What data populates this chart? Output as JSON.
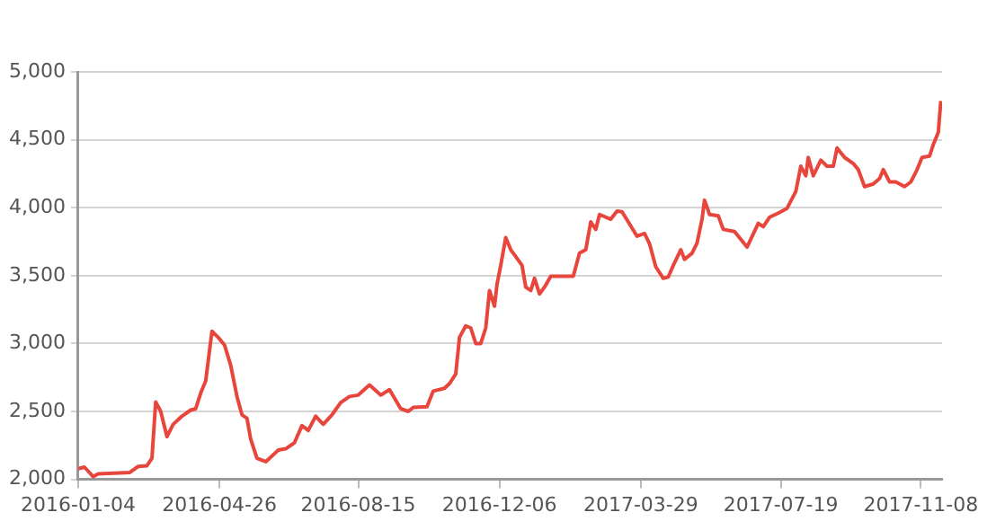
{
  "chart_data": {
    "type": "line",
    "color": "#e8453c",
    "marker": "none",
    "grid": "y",
    "x": [
      "2016-01-04",
      "2016-01-09",
      "2016-01-16",
      "2016-01-20",
      "2016-02-14",
      "2016-02-21",
      "2016-02-28",
      "2016-03-03",
      "2016-03-06",
      "2016-03-10",
      "2016-03-15",
      "2016-03-20",
      "2016-03-27",
      "2016-04-03",
      "2016-04-07",
      "2016-04-11",
      "2016-04-15",
      "2016-04-20",
      "2016-04-25",
      "2016-04-30",
      "2016-05-05",
      "2016-05-10",
      "2016-05-14",
      "2016-05-18",
      "2016-05-21",
      "2016-05-26",
      "2016-06-02",
      "2016-06-05",
      "2016-06-12",
      "2016-06-18",
      "2016-06-25",
      "2016-07-01",
      "2016-07-06",
      "2016-07-12",
      "2016-07-18",
      "2016-07-25",
      "2016-08-01",
      "2016-08-08",
      "2016-08-15",
      "2016-08-24",
      "2016-09-02",
      "2016-09-09",
      "2016-09-18",
      "2016-09-24",
      "2016-09-28",
      "2016-10-09",
      "2016-10-14",
      "2016-10-23",
      "2016-10-27",
      "2016-11-01",
      "2016-11-04",
      "2016-11-09",
      "2016-11-13",
      "2016-11-17",
      "2016-11-21",
      "2016-11-25",
      "2016-11-28",
      "2016-12-02",
      "2016-12-04",
      "2016-12-07",
      "2016-12-11",
      "2016-12-15",
      "2016-12-19",
      "2016-12-24",
      "2016-12-27",
      "2016-12-31",
      "2017-01-03",
      "2017-01-07",
      "2017-01-11",
      "2017-01-16",
      "2017-02-03",
      "2017-02-08",
      "2017-02-13",
      "2017-02-17",
      "2017-02-21",
      "2017-02-24",
      "2017-03-05",
      "2017-03-10",
      "2017-03-14",
      "2017-03-19",
      "2017-03-26",
      "2017-04-01",
      "2017-04-05",
      "2017-04-10",
      "2017-04-16",
      "2017-04-20",
      "2017-04-24",
      "2017-04-30",
      "2017-05-03",
      "2017-05-09",
      "2017-05-13",
      "2017-05-17",
      "2017-05-19",
      "2017-05-23",
      "2017-05-30",
      "2017-06-03",
      "2017-06-12",
      "2017-06-22",
      "2017-07-01",
      "2017-07-05",
      "2017-07-10",
      "2017-07-17",
      "2017-07-24",
      "2017-07-31",
      "2017-08-04",
      "2017-08-08",
      "2017-08-10",
      "2017-08-14",
      "2017-08-20",
      "2017-08-25",
      "2017-08-30",
      "2017-09-02",
      "2017-09-08",
      "2017-09-15",
      "2017-09-19",
      "2017-09-24",
      "2017-10-01",
      "2017-10-06",
      "2017-10-09",
      "2017-10-14",
      "2017-10-19",
      "2017-10-26",
      "2017-10-31",
      "2017-11-05",
      "2017-11-09",
      "2017-11-15",
      "2017-11-18",
      "2017-11-22",
      "2017-11-24"
    ],
    "values": [
      2078,
      2090,
      2020,
      2040,
      2050,
      2095,
      2100,
      2155,
      2570,
      2500,
      2315,
      2405,
      2465,
      2510,
      2520,
      2635,
      2725,
      3090,
      3045,
      2990,
      2840,
      2610,
      2475,
      2450,
      2295,
      2155,
      2130,
      2155,
      2215,
      2225,
      2270,
      2395,
      2360,
      2465,
      2405,
      2475,
      2565,
      2610,
      2620,
      2695,
      2620,
      2660,
      2520,
      2500,
      2530,
      2535,
      2650,
      2670,
      2705,
      2775,
      3045,
      3130,
      3115,
      3000,
      3000,
      3115,
      3390,
      3275,
      3435,
      3575,
      3780,
      3690,
      3640,
      3575,
      3415,
      3390,
      3480,
      3365,
      3415,
      3495,
      3495,
      3665,
      3690,
      3895,
      3840,
      3950,
      3915,
      3975,
      3970,
      3895,
      3790,
      3810,
      3735,
      3565,
      3480,
      3490,
      3575,
      3690,
      3620,
      3665,
      3740,
      3915,
      4055,
      3950,
      3940,
      3840,
      3825,
      3710,
      3885,
      3860,
      3930,
      3960,
      3995,
      4120,
      4305,
      4235,
      4370,
      4235,
      4350,
      4305,
      4305,
      4440,
      4370,
      4325,
      4280,
      4155,
      4175,
      4215,
      4280,
      4190,
      4190,
      4155,
      4190,
      4280,
      4370,
      4380,
      4465,
      4555,
      4785
    ],
    "xlim": [
      "2016-01-04",
      "2017-11-25"
    ],
    "xticks": [
      "2016-01-04",
      "2016-04-26",
      "2016-08-15",
      "2016-12-06",
      "2017-03-29",
      "2017-07-19",
      "2017-11-08"
    ],
    "ylim": [
      2000,
      5000
    ],
    "yticks": [
      {
        "value": 2000,
        "label": "2,000"
      },
      {
        "value": 2500,
        "label": "2,500"
      },
      {
        "value": 3000,
        "label": "3,000"
      },
      {
        "value": 3500,
        "label": "3,500"
      },
      {
        "value": 4000,
        "label": "4,000"
      },
      {
        "value": 4500,
        "label": "4,500"
      },
      {
        "value": 5000,
        "label": "5,000"
      }
    ]
  }
}
